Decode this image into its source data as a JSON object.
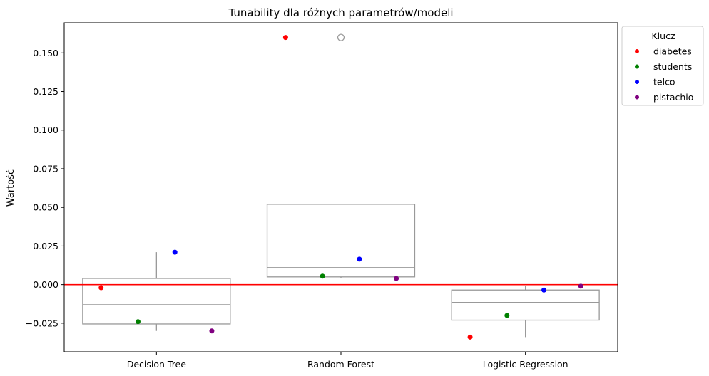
{
  "chart_data": {
    "type": "box",
    "title": "Tunability dla różnych parametrów/modeli",
    "xlabel": "",
    "ylabel": "Wartość",
    "categories": [
      "Decision Tree",
      "Random Forest",
      "Logistic Regression"
    ],
    "ylim": [
      -0.0435,
      0.1695
    ],
    "yticks": [
      -0.025,
      0.0,
      0.025,
      0.05,
      0.075,
      0.1,
      0.125,
      0.15
    ],
    "ytick_labels": [
      "−0.025",
      "0.000",
      "0.025",
      "0.050",
      "0.075",
      "0.100",
      "0.125",
      "0.150"
    ],
    "reference_line": {
      "y": 0.0,
      "color": "#ff0000"
    },
    "boxes": [
      {
        "category": "Decision Tree",
        "q1": -0.0255,
        "median": -0.013,
        "q3": 0.004,
        "whisker_low": -0.03,
        "whisker_high": 0.021,
        "outliers": []
      },
      {
        "category": "Random Forest",
        "q1": 0.005,
        "median": 0.011,
        "q3": 0.052,
        "whisker_low": 0.004,
        "whisker_high": 0.052,
        "outliers": [
          0.16
        ]
      },
      {
        "category": "Logistic Regression",
        "q1": -0.023,
        "median": -0.0115,
        "q3": -0.0035,
        "whisker_low": -0.034,
        "whisker_high": -0.001,
        "outliers": []
      }
    ],
    "series": [
      {
        "name": "diabetes",
        "color": "#ff0000",
        "values": [
          -0.002,
          0.16,
          -0.034
        ]
      },
      {
        "name": "students",
        "color": "#008000",
        "values": [
          -0.024,
          0.0055,
          -0.02
        ]
      },
      {
        "name": "telco",
        "color": "#0000ff",
        "values": [
          0.021,
          0.0165,
          -0.0035
        ]
      },
      {
        "name": "pistachio",
        "color": "#800080",
        "values": [
          -0.03,
          0.004,
          -0.001
        ]
      }
    ],
    "legend": {
      "title": "Klucz",
      "position": "top-right-outside"
    },
    "box_color": "#999999",
    "grid": false
  }
}
